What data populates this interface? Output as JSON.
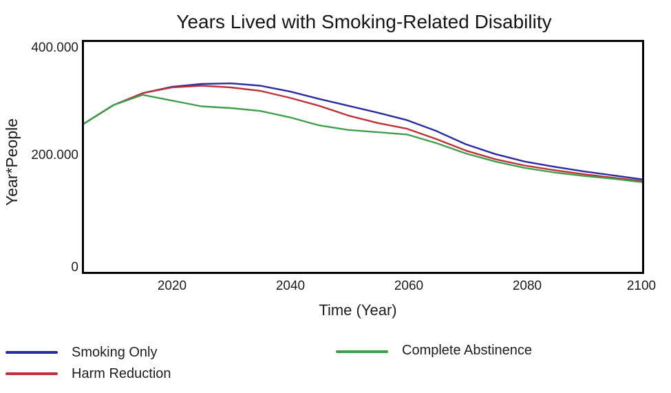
{
  "chart_data": {
    "type": "line",
    "title": "Years Lived with Smoking-Related Disability",
    "xlabel": "Time (Year)",
    "ylabel": "Year*People",
    "xlim": [
      2005,
      2100
    ],
    "ylim": [
      0,
      400000
    ],
    "grid": false,
    "legend_position": "bottom",
    "x_ticks": [
      2020,
      2040,
      2060,
      2080,
      2100
    ],
    "y_ticks": [
      {
        "value": 0,
        "label": "0"
      },
      {
        "value": 200000,
        "label": "200.000"
      },
      {
        "value": 400000,
        "label": "400.000"
      }
    ],
    "x": [
      2005,
      2010,
      2015,
      2020,
      2025,
      2030,
      2035,
      2040,
      2045,
      2050,
      2055,
      2060,
      2065,
      2070,
      2075,
      2080,
      2085,
      2090,
      2095,
      2100
    ],
    "series": [
      {
        "name": "Smoking Only",
        "color": "#2b2ba0",
        "values": [
          258000,
          290000,
          311000,
          322000,
          327000,
          328000,
          324000,
          314000,
          301000,
          289000,
          277000,
          264000,
          245000,
          222000,
          205000,
          192000,
          183000,
          175000,
          168000,
          161000
        ]
      },
      {
        "name": "Harm Reduction",
        "color": "#bf3138",
        "values": [
          258000,
          290000,
          311000,
          321000,
          324000,
          321000,
          315000,
          303000,
          289000,
          272000,
          259000,
          249000,
          231000,
          211000,
          196000,
          185000,
          177000,
          170000,
          164000,
          158000
        ]
      },
      {
        "name": "Complete Abstinence",
        "color": "#3f9e4c",
        "values": [
          258000,
          290000,
          308000,
          298000,
          288000,
          285000,
          280000,
          269000,
          255000,
          247000,
          243000,
          239000,
          224000,
          206000,
          192000,
          181000,
          173000,
          167000,
          162000,
          156000
        ]
      }
    ]
  }
}
